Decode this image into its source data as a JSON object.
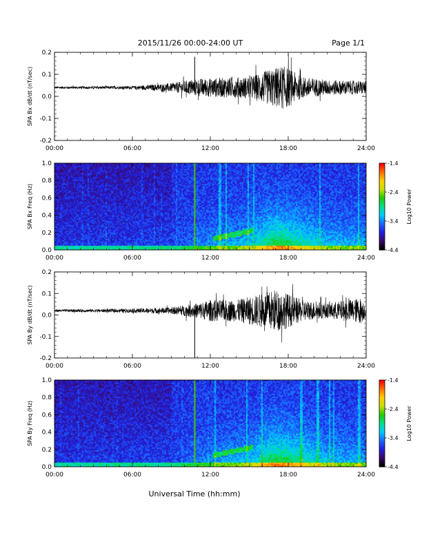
{
  "header": {
    "title": "2015/11/26  00:00-24:00 UT",
    "page": "Page 1/1"
  },
  "footer": {
    "xlabel": "Universal Time (hh:mm)"
  },
  "colors": {
    "trace": "#000000",
    "spectrogram_background": "#3b10a8",
    "colorbar_stops": [
      "#000000",
      "#3a0a6e",
      "#2020e0",
      "#1a6bff",
      "#00ccff",
      "#00e08a",
      "#22cc00",
      "#c8e000",
      "#ffd000",
      "#ff7000",
      "#ff0000"
    ]
  },
  "chart_data": [
    {
      "type": "line",
      "id": "bx_timeseries",
      "title": "",
      "ylabel": "SPA Bx dB/dt (nT/sec)",
      "xlim": [
        0,
        24
      ],
      "ylim": [
        -0.2,
        0.2
      ],
      "x_ticks": [
        "00:00",
        "06:00",
        "12:00",
        "18:00",
        "24:00"
      ],
      "y_ticks": [
        "-0.2",
        "-0.1",
        "0.0",
        "0.1",
        "0.2"
      ],
      "y_tick_values": [
        -0.2,
        -0.1,
        0.0,
        0.1,
        0.2
      ],
      "baseline": 0.04,
      "spike": {
        "x": 10.8,
        "ymin": 0.02,
        "ymax": 0.18
      },
      "envelope": {
        "hours": [
          0,
          6,
          9,
          11,
          13,
          15,
          16.5,
          17.5,
          18,
          19,
          21,
          24
        ],
        "amplitude": [
          0.005,
          0.007,
          0.02,
          0.04,
          0.045,
          0.05,
          0.08,
          0.1,
          0.09,
          0.05,
          0.035,
          0.03
        ]
      }
    },
    {
      "type": "heatmap",
      "id": "bx_spectrogram",
      "title": "",
      "ylabel": "SPA Bx Freq (Hz)",
      "xlim": [
        0,
        24
      ],
      "ylim": [
        0,
        1.0
      ],
      "x_ticks": [
        "00:00",
        "06:00",
        "12:00",
        "18:00",
        "24:00"
      ],
      "y_ticks": [
        "0.0",
        "0.2",
        "0.4",
        "0.6",
        "0.8",
        "1.0"
      ],
      "y_tick_values": [
        0.0,
        0.2,
        0.4,
        0.6,
        0.8,
        1.0
      ],
      "colorbar": {
        "label": "Log10 Power",
        "range": [
          -4.4,
          -1.4
        ],
        "ticks": [
          "-1.4",
          "-2.4",
          "-3.4",
          "-4.4"
        ],
        "tick_values": [
          -1.4,
          -2.4,
          -3.4,
          -4.4
        ]
      },
      "vertical_line_hour": 10.8
    },
    {
      "type": "line",
      "id": "by_timeseries",
      "title": "",
      "ylabel": "SPA By dB/dt (nT/sec)",
      "xlim": [
        0,
        24
      ],
      "ylim": [
        -0.2,
        0.2
      ],
      "x_ticks": [
        "00:00",
        "06:00",
        "12:00",
        "18:00",
        "24:00"
      ],
      "y_ticks": [
        "-0.2",
        "-0.1",
        "0.0",
        "0.1",
        "0.2"
      ],
      "y_tick_values": [
        -0.2,
        -0.1,
        0.0,
        0.1,
        0.2
      ],
      "baseline": 0.02,
      "spike": {
        "x": 10.8,
        "ymin": -0.2,
        "ymax": 0.02
      },
      "envelope": {
        "hours": [
          0,
          5,
          9,
          11,
          12,
          14,
          16,
          17,
          18,
          19,
          21,
          23.6,
          24
        ],
        "amplitude": [
          0.006,
          0.008,
          0.015,
          0.035,
          0.05,
          0.05,
          0.08,
          0.1,
          0.08,
          0.05,
          0.035,
          0.06,
          0.03
        ]
      }
    },
    {
      "type": "heatmap",
      "id": "by_spectrogram",
      "title": "",
      "ylabel": "SPA By Freq (Hz)",
      "xlim": [
        0,
        24
      ],
      "ylim": [
        0,
        1.0
      ],
      "x_ticks": [
        "00:00",
        "06:00",
        "12:00",
        "18:00",
        "24:00"
      ],
      "y_ticks": [
        "0.0",
        "0.2",
        "0.4",
        "0.6",
        "0.8",
        "1.0"
      ],
      "y_tick_values": [
        0.0,
        0.2,
        0.4,
        0.6,
        0.8,
        1.0
      ],
      "colorbar": {
        "label": "Log10 Power",
        "range": [
          -4.4,
          -1.4
        ],
        "ticks": [
          "-1.4",
          "-2.4",
          "-3.4",
          "-4.4"
        ],
        "tick_values": [
          -1.4,
          -2.4,
          -3.4,
          -4.4
        ]
      },
      "vertical_line_hour": 10.8
    }
  ]
}
